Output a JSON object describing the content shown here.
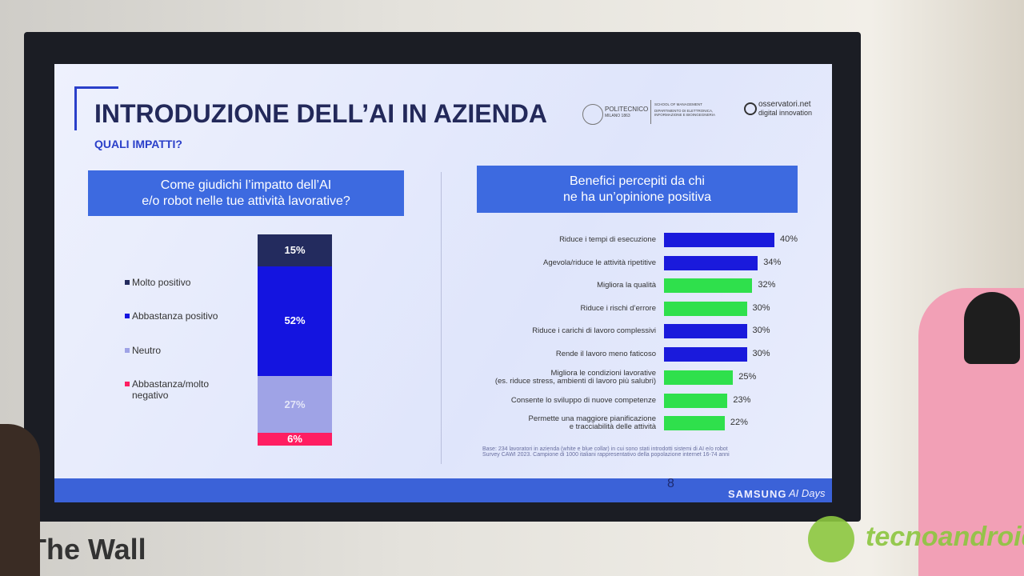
{
  "slide": {
    "title": "INTRODUZIONE DELL’AI IN AZIENDA",
    "subtitle": "QUALI IMPATTI?",
    "logos": {
      "university": "POLITECNICO",
      "university_sub": "MILANO 1863",
      "school": "SCHOOL OF MANAGEMENT",
      "department": "DIPARTIMENTO DI ELETTRONICA, INFORMAZIONE E BIOINGEGNERIA",
      "observatory": "osservatori.net",
      "observatory_sub": "digital innovation"
    },
    "footnote": "Base: 234 lavoratori in azienda (white e blue collar) in cui sono stati introdotti sistemi di AI e/o robot\nSurvey CAWI 2023. Campione di 1000 italiani rappresentativo della popolazione internet 16-74 anni",
    "page_number": "8",
    "brand": "SAMSUNG",
    "event": "AI Days"
  },
  "room": {
    "screen_label": "The Wall",
    "watermark": "tecnoandroid"
  },
  "chart_data": [
    {
      "type": "stacked_bar",
      "title": "Come giudichi l’impatto dell’AI\ne/o robot nelle tue attività lavorative?",
      "categories": [
        null
      ],
      "series": [
        {
          "name": "Molto positivo",
          "color": "#232b5e",
          "values": [
            15
          ],
          "value_labels": [
            "15%"
          ]
        },
        {
          "name": "Abbastanza positivo",
          "color": "#1414e0",
          "values": [
            52
          ],
          "value_labels": [
            "52%"
          ]
        },
        {
          "name": "Neutro",
          "color": "#9fa3e6",
          "values": [
            27
          ],
          "value_labels": [
            "27%"
          ]
        },
        {
          "name": "Abbastanza/molto negativo",
          "color": "#ff1e62",
          "values": [
            6
          ],
          "value_labels": [
            "6%"
          ]
        }
      ]
    },
    {
      "type": "hbar",
      "title": "Benefici percepiti da chi\nne ha un’opinione positiva",
      "categories": [
        "Riduce i tempi di esecuzione",
        "Agevola/riduce le attività ripetitive",
        "Migliora la qualità",
        "Riduce i rischi d’errore",
        "Riduce i carichi di lavoro complessivi",
        "Rende il lavoro meno faticoso",
        "Migliora le condizioni lavorative\n(es. riduce stress, ambienti di lavoro più salubri)",
        "Consente lo sviluppo di nuove competenze",
        "Permette una maggiore pianificazione\ne tracciabilità delle attività"
      ],
      "values": [
        40,
        34,
        32,
        30,
        30,
        30,
        25,
        23,
        22
      ],
      "value_labels": [
        "40%",
        "34%",
        "32%",
        "30%",
        "30%",
        "30%",
        "25%",
        "23%",
        "22%"
      ],
      "colors": [
        "#1a1adc",
        "#1a1adc",
        "#2fe04c",
        "#2fe04c",
        "#1a1adc",
        "#1a1adc",
        "#2fe04c",
        "#2fe04c",
        "#2fe04c"
      ]
    }
  ]
}
